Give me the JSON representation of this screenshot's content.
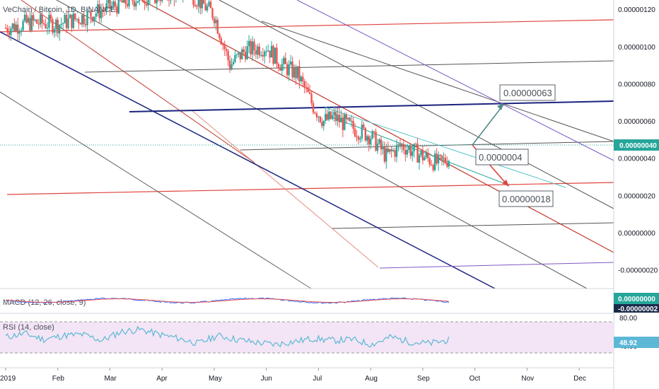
{
  "header": {
    "symbol_title": "VeChain / Bitcoin, 1D, BINANCE"
  },
  "colors": {
    "candle_up": "#26a69a",
    "candle_down": "#ef5350",
    "price_line": "#26a69a",
    "current_price_bg": "#26a69a",
    "macd_bg": "#26a69a",
    "rsi_band": "#f3e5f5",
    "rsi_line": "#5cb8d6",
    "macd_line": "#2962ff",
    "signal_line": "#ef5350",
    "channel_red": "#e0443e",
    "channel_gray": "#666666",
    "channel_blue": "#1a237e",
    "channel_purple": "#7e57c2",
    "arrow_teal": "#4f8c86"
  },
  "price_axis": {
    "ticks": [
      "0.00000120",
      "0.00000100",
      "0.00000080",
      "0.00000060",
      "0.00000040",
      "0.00000020",
      "0.00000000",
      "-0.00000020"
    ],
    "current_price": "0.00000040"
  },
  "time_axis": {
    "ticks": [
      "2019",
      "Feb",
      "Mar",
      "Apr",
      "May",
      "Jun",
      "Jul",
      "Aug",
      "Sep",
      "Oct",
      "Nov",
      "Dec"
    ]
  },
  "annotations": {
    "target_up": "0.00000063",
    "mid_label": "0.0000004",
    "target_down": "0.00000018"
  },
  "macd": {
    "label": "MACD (12, 26, close, 9)",
    "value": "0.00000000",
    "value2": "-0.00000002"
  },
  "rsi": {
    "label": "RSI (14, close)",
    "value": "48.92",
    "level_upper": "80.00",
    "level_lower": "40.00"
  },
  "chart_data": {
    "type": "candlestick",
    "title": "VeChain / Bitcoin, 1D, BINANCE",
    "x_unit": "months of 2019",
    "x": [
      0.0,
      0.5,
      1.0,
      1.5,
      2.0,
      2.5,
      3.0,
      3.5,
      4.0,
      4.3,
      4.6,
      5.0,
      5.3,
      5.6,
      5.9,
      6.1,
      6.3,
      6.6,
      7.0,
      7.3,
      7.6,
      8.0,
      8.3,
      8.5
    ],
    "close": [
      1.1e-06,
      1.13e-06,
      1.12e-06,
      1.16e-06,
      1.21e-06,
      1.26e-06,
      1.28e-06,
      1.3e-06,
      1.17e-06,
      9e-07,
      9.8e-07,
      1e-06,
      9e-07,
      8.5e-07,
      6.8e-07,
      6e-07,
      6.2e-07,
      5.7e-07,
      5.2e-07,
      4.1e-07,
      4.7e-07,
      4.1e-07,
      3.7e-07,
      4e-07
    ],
    "ylim": [
      -3e-07,
      1.25e-06
    ],
    "macd": {
      "value": 0.0,
      "ylim": [
        -2e-08,
        1e-08
      ]
    },
    "rsi": {
      "values": [
        55,
        62,
        50,
        58,
        60,
        48,
        66,
        70,
        60,
        52,
        42,
        58,
        50,
        44,
        40,
        46,
        52,
        48,
        50,
        40,
        55,
        45,
        42,
        49
      ],
      "levels": [
        40,
        80
      ]
    }
  }
}
